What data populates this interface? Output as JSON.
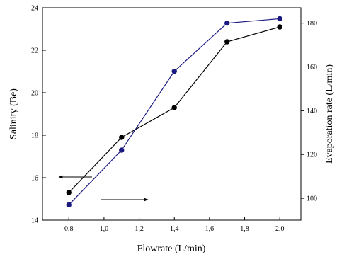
{
  "chart_data": {
    "type": "line",
    "title": "",
    "xlabel": "Flowrate (L/min)",
    "ylabel": "Salinity (Be)",
    "y2label": "Evaporation rate (L/min)",
    "xlim": [
      0.65,
      2.12
    ],
    "ylim": [
      14,
      24
    ],
    "y2lim": [
      90,
      187
    ],
    "x_ticks": [
      0.8,
      1.0,
      1.2,
      1.4,
      1.6,
      1.8,
      2.0
    ],
    "x_tick_labels": [
      "0,8",
      "1,0",
      "1,2",
      "1,4",
      "1,6",
      "1,8",
      "2,0"
    ],
    "y_ticks": [
      14,
      16,
      18,
      20,
      22,
      24
    ],
    "y_tick_labels": [
      "14",
      "16",
      "18",
      "20",
      "22",
      "24"
    ],
    "y2_ticks": [
      100,
      120,
      140,
      160,
      180
    ],
    "y2_tick_labels": [
      "100",
      "120",
      "140",
      "160",
      "180"
    ],
    "grid": false,
    "series": [
      {
        "axis": "left",
        "color": "#000000",
        "x": [
          0.8,
          1.1,
          1.4,
          1.7,
          2.0
        ],
        "values": [
          15.3,
          17.9,
          19.3,
          22.4,
          23.1
        ]
      },
      {
        "axis": "right",
        "color": "#1a1a80",
        "x": [
          0.8,
          1.1,
          1.4,
          1.7,
          2.0
        ],
        "values": [
          97,
          122,
          158,
          180,
          182
        ]
      }
    ],
    "annotations": [
      {
        "name": "left-axis-arrow",
        "direction": "left"
      },
      {
        "name": "right-axis-arrow",
        "direction": "right"
      }
    ]
  }
}
